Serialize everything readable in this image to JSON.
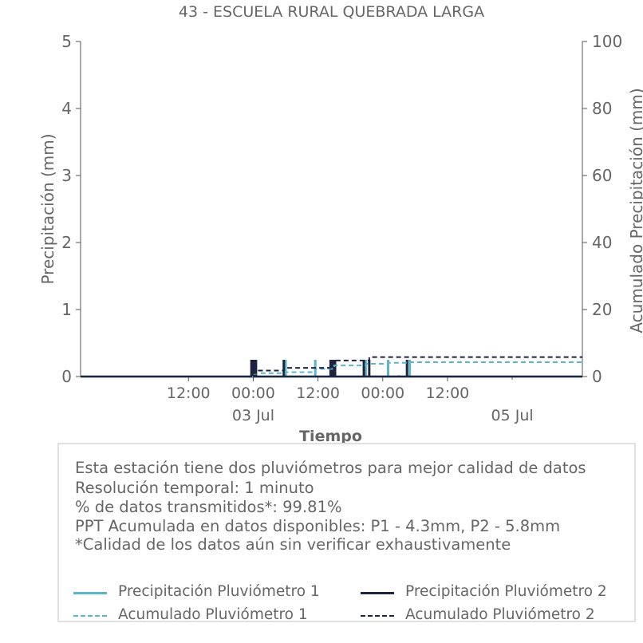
{
  "chart_data": {
    "type": "line",
    "title": "43 - ESCUELA RURAL QUEBRADA LARGA",
    "xlabel": "Tiempo",
    "ylabel": "Precipitación (mm)",
    "y2label": "Acumulado Precipitación (mm)",
    "xlim": [
      "2022-07-01T16:00",
      "2022-07-05T13:00"
    ],
    "ylim": [
      0,
      5
    ],
    "y2lim": [
      0,
      100
    ],
    "yticks": [
      "0",
      "1",
      "2",
      "3",
      "4",
      "5"
    ],
    "y2ticks": [
      "0",
      "20",
      "40",
      "60",
      "80",
      "100"
    ],
    "xticks": [
      {
        "t": "2022-07-02T12:00",
        "label": "12:00"
      },
      {
        "t": "2022-07-03T00:00",
        "label": "00:00"
      },
      {
        "t": "2022-07-03T12:00",
        "label": "12:00"
      },
      {
        "t": "2022-07-04T00:00",
        "label": "00:00"
      },
      {
        "t": "2022-07-04T12:00",
        "label": "12:00"
      }
    ],
    "xticks_secondary": [
      {
        "t": "2022-07-03T00:00",
        "label": "03 Jul"
      },
      {
        "t": "2022-07-05T00:00",
        "label": "05 Jul"
      }
    ],
    "grid": false,
    "series": [
      {
        "name": "Precipitación Pluviómetro 1",
        "kind": "bar",
        "color": "#5bb5c8",
        "x": [
          "2022-07-02T23:50",
          "2022-07-02T23:55",
          "2022-07-03T00:05",
          "2022-07-03T00:30",
          "2022-07-03T06:00",
          "2022-07-03T11:30",
          "2022-07-03T14:30",
          "2022-07-03T14:45",
          "2022-07-03T15:00",
          "2022-07-03T20:50",
          "2022-07-04T01:00",
          "2022-07-04T03:00",
          "2022-07-04T05:00"
        ],
        "values": [
          0.25,
          0.25,
          0.25,
          0.25,
          0.25,
          0.25,
          0.25,
          0.25,
          0.25,
          0.25,
          0.25,
          0.02,
          0.25
        ]
      },
      {
        "name": "Precipitación Pluviómetro 2",
        "kind": "bar",
        "color": "#1e2340",
        "x": [
          "2022-07-02T23:40",
          "2022-07-02T23:45",
          "2022-07-02T23:50",
          "2022-07-02T23:55",
          "2022-07-03T00:00",
          "2022-07-03T00:05",
          "2022-07-03T00:30",
          "2022-07-03T05:40",
          "2022-07-03T14:20",
          "2022-07-03T14:30",
          "2022-07-03T14:40",
          "2022-07-03T14:50",
          "2022-07-03T15:00",
          "2022-07-03T15:10",
          "2022-07-03T20:30",
          "2022-07-03T21:30",
          "2022-07-04T04:30"
        ],
        "values": [
          0.25,
          0.25,
          0.25,
          0.25,
          0.25,
          0.25,
          0.25,
          0.25,
          0.25,
          0.25,
          0.25,
          0.25,
          0.25,
          0.25,
          0.25,
          0.25,
          0.25
        ]
      },
      {
        "name": "Acumulado Pluviómetro 1",
        "kind": "step-dashed",
        "axis": "y2",
        "color": "#5bb5c8",
        "x": [
          "2022-07-01T16:00",
          "2022-07-02T23:50",
          "2022-07-03T00:30",
          "2022-07-03T06:00",
          "2022-07-03T11:30",
          "2022-07-03T15:00",
          "2022-07-03T20:50",
          "2022-07-04T01:00",
          "2022-07-04T05:00",
          "2022-07-05T13:00"
        ],
        "values": [
          0,
          0.8,
          1.0,
          1.3,
          2.3,
          3.3,
          3.8,
          4.1,
          4.3,
          4.3
        ]
      },
      {
        "name": "Acumulado Pluviómetro 2",
        "kind": "step-dashed",
        "axis": "y2",
        "color": "#1e2340",
        "x": [
          "2022-07-01T16:00",
          "2022-07-02T23:40",
          "2022-07-03T00:30",
          "2022-07-03T05:40",
          "2022-07-03T14:20",
          "2022-07-03T15:10",
          "2022-07-03T20:30",
          "2022-07-03T21:30",
          "2022-07-04T04:30",
          "2022-07-05T13:00"
        ],
        "values": [
          0,
          1.0,
          1.8,
          2.6,
          4.0,
          4.8,
          4.8,
          5.8,
          5.8,
          5.8
        ]
      }
    ]
  },
  "info": {
    "lines": [
      "Esta estación tiene dos pluviómetros para mejor calidad de datos",
      "Resolución temporal: 1 minuto",
      "% de datos transmitidos*: 99.81%",
      "PPT Acumulada en datos disponibles: P1 - 4.3mm, P2 - 5.8mm",
      "*Calidad de los datos aún sin verificar exhaustivamente"
    ]
  },
  "legend": [
    {
      "label": "Precipitación Pluviómetro 1",
      "color": "#5bb5c8",
      "style": "solid"
    },
    {
      "label": "Precipitación Pluviómetro 2",
      "color": "#1e2340",
      "style": "solid"
    },
    {
      "label": "Acumulado Pluviómetro 1",
      "color": "#5bb5c8",
      "style": "dashed"
    },
    {
      "label": "Acumulado Pluviómetro 2",
      "color": "#1e2340",
      "style": "dashed"
    }
  ]
}
